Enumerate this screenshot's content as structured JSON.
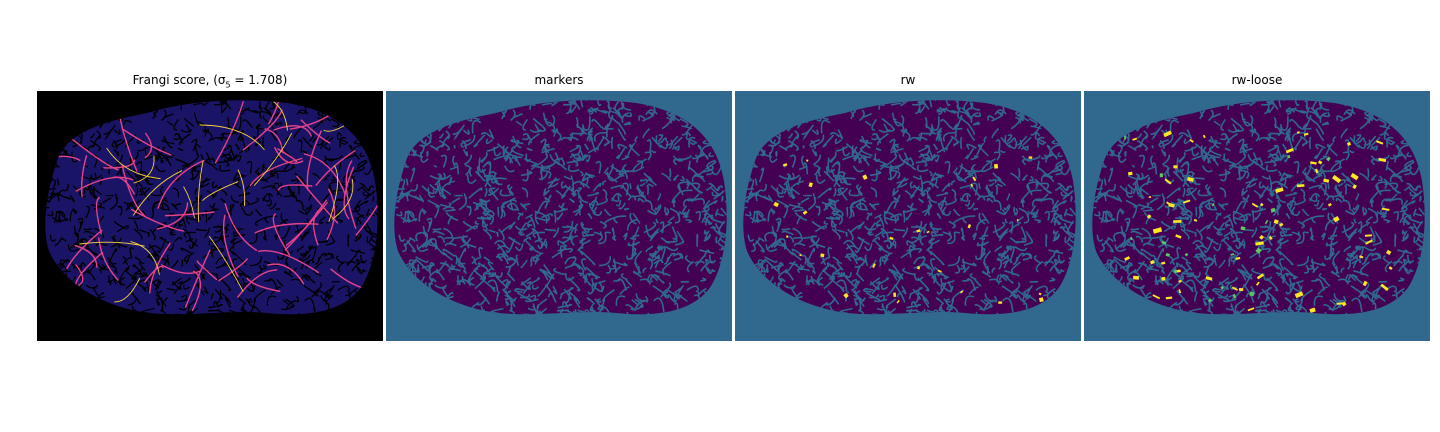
{
  "panels": [
    {
      "title": "Frangi score, (σ",
      "title_sub": "5",
      "title_rest": " = 1.708)",
      "style": "frangi"
    },
    {
      "title": "markers",
      "style": "markers"
    },
    {
      "title": "rw",
      "style": "rw"
    },
    {
      "title": "rw-loose",
      "style": "rw-loose"
    }
  ],
  "colors": {
    "frangi_bg": "#000000",
    "frangi_tissue": "#1a1466",
    "frangi_vessel_bright": "#f7d13d",
    "frangi_vessel_mid": "#e6428a",
    "viridis_bg": "#30688e",
    "viridis_dark": "#440154",
    "viridis_yellow": "#fde725",
    "viridis_green": "#5dc863"
  }
}
